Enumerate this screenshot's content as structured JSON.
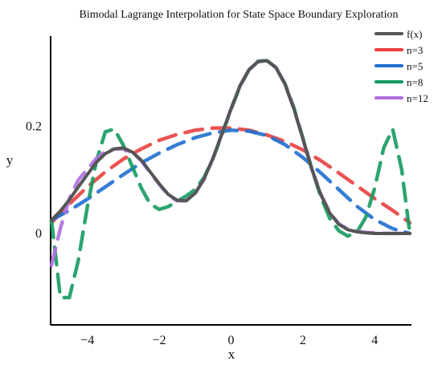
{
  "chart_data": {
    "type": "line",
    "title": "Bimodal Lagrange Interpolation for State Space Boundary Exploration",
    "xlabel": "x",
    "ylabel": "y",
    "xlim": [
      -5,
      5
    ],
    "ylim": [
      -0.15,
      0.33
    ],
    "grid": false,
    "legend_position": "top-right",
    "x_ticks": [
      -4,
      -2,
      0,
      2,
      4
    ],
    "x_tick_labels": [
      "−4",
      "−2",
      "0",
      "2",
      "4"
    ],
    "y_ticks": [
      0,
      0.2
    ],
    "y_tick_labels": [
      "0",
      "0.2"
    ],
    "series": [
      {
        "name": "f(x)",
        "color": "#555555",
        "dashed": false,
        "x": [
          -5,
          -4.75,
          -4.5,
          -4.25,
          -4,
          -3.75,
          -3.5,
          -3.25,
          -3,
          -2.75,
          -2.5,
          -2.25,
          -2,
          -1.75,
          -1.5,
          -1.25,
          -1,
          -0.75,
          -0.5,
          -0.25,
          0,
          0.25,
          0.5,
          0.75,
          1,
          1.25,
          1.5,
          1.75,
          2,
          2.25,
          2.5,
          2.75,
          3,
          3.25,
          3.5,
          3.75,
          4,
          4.25,
          4.5,
          4.75,
          5
        ],
        "y": [
          0.025,
          0.042,
          0.063,
          0.087,
          0.11,
          0.133,
          0.149,
          0.158,
          0.16,
          0.152,
          0.137,
          0.115,
          0.093,
          0.073,
          0.062,
          0.061,
          0.075,
          0.102,
          0.141,
          0.187,
          0.233,
          0.276,
          0.306,
          0.321,
          0.323,
          0.31,
          0.279,
          0.233,
          0.177,
          0.12,
          0.072,
          0.038,
          0.017,
          0.007,
          0.003,
          0.001,
          0,
          0,
          0,
          0,
          0
        ]
      },
      {
        "name": "n=3",
        "color": "#e8403f",
        "dashed": true,
        "x": [
          -5,
          -4.5,
          -4,
          -3.5,
          -3,
          -2.5,
          -2,
          -1.5,
          -1,
          -0.5,
          0,
          0.5,
          1,
          1.5,
          2,
          2.5,
          3,
          3.5,
          4,
          4.5,
          5
        ],
        "y": [
          0.02,
          0.055,
          0.087,
          0.115,
          0.139,
          0.158,
          0.174,
          0.185,
          0.193,
          0.197,
          0.197,
          0.193,
          0.184,
          0.172,
          0.156,
          0.136,
          0.113,
          0.089,
          0.065,
          0.043,
          0.02
        ]
      },
      {
        "name": "n=5",
        "color": "#1f6fcf",
        "dashed": true,
        "x": [
          -5,
          -4.5,
          -4,
          -3.5,
          -3,
          -2.5,
          -2,
          -1.5,
          -1,
          -0.5,
          0,
          0.5,
          1,
          1.5,
          2,
          2.5,
          3,
          3.5,
          4,
          4.5,
          5
        ],
        "y": [
          0.025,
          0.043,
          0.064,
          0.087,
          0.11,
          0.132,
          0.15,
          0.166,
          0.179,
          0.188,
          0.193,
          0.191,
          0.183,
          0.166,
          0.142,
          0.113,
          0.082,
          0.051,
          0.026,
          0.009,
          0
        ]
      },
      {
        "name": "n=8",
        "color": "#169a5f",
        "dashed": true,
        "x": [
          -5,
          -4.75,
          -4.5,
          -4.25,
          -4,
          -3.75,
          -3.5,
          -3.25,
          -3,
          -2.75,
          -2.5,
          -2.25,
          -2,
          -1.75,
          -1.5,
          -1.25,
          -1,
          -0.75,
          -0.5,
          -0.25,
          0,
          0.25,
          0.5,
          0.75,
          1,
          1.25,
          1.5,
          1.75,
          2,
          2.25,
          2.5,
          2.75,
          3,
          3.25,
          3.5,
          3.75,
          4,
          4.25,
          4.5,
          4.75,
          5
        ],
        "y": [
          0.025,
          -0.12,
          -0.12,
          -0.05,
          0.05,
          0.135,
          0.19,
          0.195,
          0.165,
          0.125,
          0.085,
          0.055,
          0.045,
          0.05,
          0.06,
          0.07,
          0.082,
          0.105,
          0.14,
          0.185,
          0.232,
          0.275,
          0.306,
          0.322,
          0.323,
          0.31,
          0.28,
          0.235,
          0.178,
          0.12,
          0.068,
          0.028,
          0.005,
          -0.005,
          0.002,
          0.03,
          0.085,
          0.16,
          0.195,
          0.12,
          0
        ]
      },
      {
        "name": "n=12",
        "color": "#b06fe0",
        "dashed": true,
        "x": [
          -5,
          -4.75,
          -4.5,
          -4.25,
          -4,
          -3.75,
          -3.5,
          -3.25,
          -3,
          -2.75,
          -2.5,
          -2.25,
          -2,
          -1.75,
          -1.5,
          -1.25,
          -1,
          -0.75,
          -0.5,
          -0.25,
          0,
          0.25,
          0.5,
          0.75,
          1,
          1.25,
          1.5,
          1.75,
          2,
          2.25,
          2.5,
          2.75,
          3,
          3.25,
          3.5,
          3.75,
          4,
          4.25,
          4.5,
          4.75,
          5
        ],
        "y": [
          -0.06,
          0.01,
          0.065,
          0.1,
          0.12,
          0.14,
          0.153,
          0.158,
          0.158,
          0.151,
          0.136,
          0.114,
          0.092,
          0.072,
          0.061,
          0.061,
          0.075,
          0.102,
          0.141,
          0.187,
          0.233,
          0.276,
          0.306,
          0.321,
          0.323,
          0.31,
          0.279,
          0.233,
          0.177,
          0.12,
          0.073,
          0.039,
          0.018,
          0.008,
          0.004,
          0.002,
          0.001,
          0,
          0,
          0,
          0
        ]
      }
    ]
  }
}
